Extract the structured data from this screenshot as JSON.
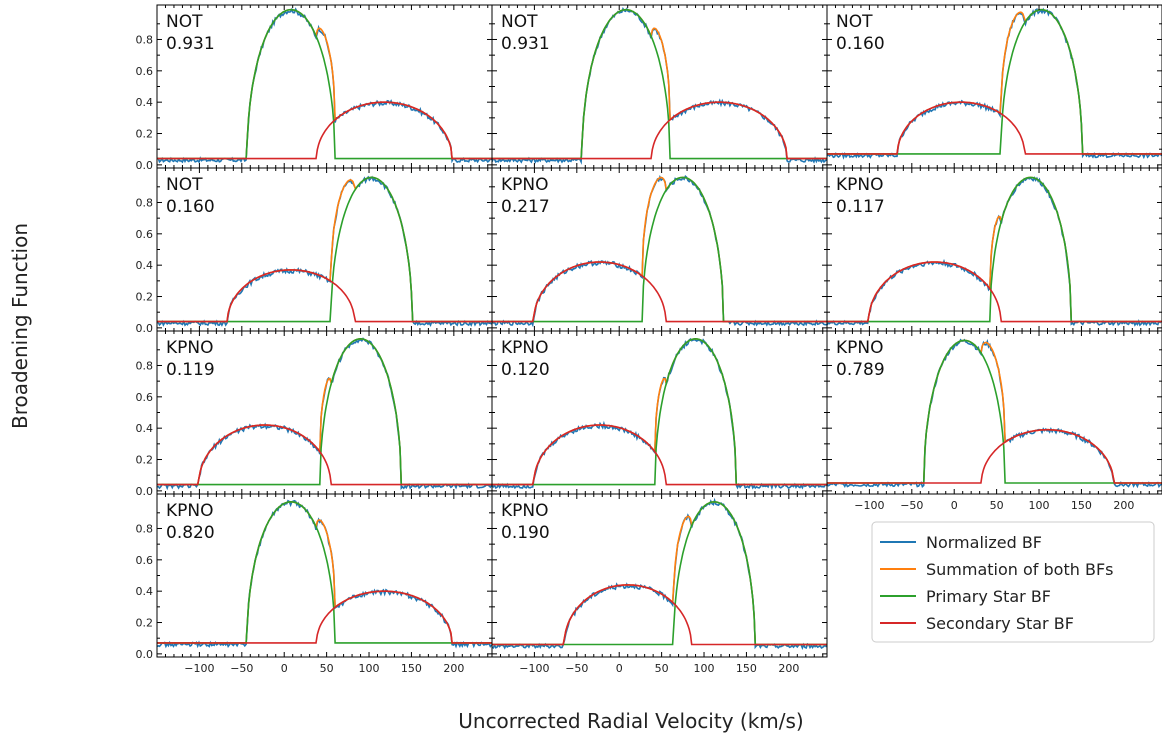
{
  "chart_data": {
    "type": "line",
    "xlabel": "Uncorrected Radial Velocity (km/s)",
    "ylabel": "Broadening Function",
    "xlim": [
      -150,
      245
    ],
    "ylim": [
      -0.02,
      1.02
    ],
    "x_ticks": [
      -100,
      -50,
      0,
      50,
      100,
      150,
      200
    ],
    "y_ticks": [
      0.0,
      0.2,
      0.4,
      0.6,
      0.8
    ],
    "grid": false,
    "legend": {
      "placement": "bottom-right",
      "entries": [
        {
          "name": "Normalized BF",
          "color": "#1f77b4"
        },
        {
          "name": "Summation of both BFs",
          "color": "#ff7f0e"
        },
        {
          "name": "Primary Star BF",
          "color": "#2ca02c"
        },
        {
          "name": "Secondary Star BF",
          "color": "#d62728"
        }
      ]
    },
    "panels": [
      {
        "observatory": "NOT",
        "phase": "0.931",
        "baseline": 0.04,
        "primary": {
          "center": 8,
          "halfwidth": 52,
          "amp": 0.95
        },
        "secondary": {
          "center": 118,
          "halfwidth": 80,
          "amp": 0.36
        }
      },
      {
        "observatory": "NOT",
        "phase": "0.931",
        "baseline": 0.04,
        "primary": {
          "center": 8,
          "halfwidth": 52,
          "amp": 0.95
        },
        "secondary": {
          "center": 118,
          "halfwidth": 80,
          "amp": 0.36
        }
      },
      {
        "observatory": "NOT",
        "phase": "0.160",
        "baseline": 0.07,
        "primary": {
          "center": 103,
          "halfwidth": 48,
          "amp": 0.92
        },
        "secondary": {
          "center": 8,
          "halfwidth": 75,
          "amp": 0.33
        }
      },
      {
        "observatory": "NOT",
        "phase": "0.160",
        "baseline": 0.04,
        "primary": {
          "center": 103,
          "halfwidth": 48,
          "amp": 0.92
        },
        "secondary": {
          "center": 8,
          "halfwidth": 75,
          "amp": 0.33
        }
      },
      {
        "observatory": "KPNO",
        "phase": "0.217",
        "baseline": 0.04,
        "primary": {
          "center": 75,
          "halfwidth": 48,
          "amp": 0.92
        },
        "secondary": {
          "center": -23,
          "halfwidth": 78,
          "amp": 0.38
        }
      },
      {
        "observatory": "KPNO",
        "phase": "0.117",
        "baseline": 0.04,
        "primary": {
          "center": 90,
          "halfwidth": 48,
          "amp": 0.92
        },
        "secondary": {
          "center": -23,
          "halfwidth": 78,
          "amp": 0.38
        }
      },
      {
        "observatory": "KPNO",
        "phase": "0.119",
        "baseline": 0.04,
        "primary": {
          "center": 90,
          "halfwidth": 48,
          "amp": 0.93
        },
        "secondary": {
          "center": -23,
          "halfwidth": 78,
          "amp": 0.38
        }
      },
      {
        "observatory": "KPNO",
        "phase": "0.120",
        "baseline": 0.04,
        "primary": {
          "center": 90,
          "halfwidth": 48,
          "amp": 0.93
        },
        "secondary": {
          "center": -23,
          "halfwidth": 78,
          "amp": 0.38
        }
      },
      {
        "observatory": "KPNO",
        "phase": "0.789",
        "baseline": 0.05,
        "primary": {
          "center": 12,
          "halfwidth": 48,
          "amp": 0.91
        },
        "secondary": {
          "center": 110,
          "halfwidth": 78,
          "amp": 0.34
        }
      },
      {
        "observatory": "KPNO",
        "phase": "0.820",
        "baseline": 0.07,
        "primary": {
          "center": 8,
          "halfwidth": 52,
          "amp": 0.9
        },
        "secondary": {
          "center": 118,
          "halfwidth": 80,
          "amp": 0.33
        }
      },
      {
        "observatory": "KPNO",
        "phase": "0.190",
        "baseline": 0.06,
        "primary": {
          "center": 112,
          "halfwidth": 48,
          "amp": 0.91
        },
        "secondary": {
          "center": 10,
          "halfwidth": 75,
          "amp": 0.38
        }
      }
    ]
  }
}
